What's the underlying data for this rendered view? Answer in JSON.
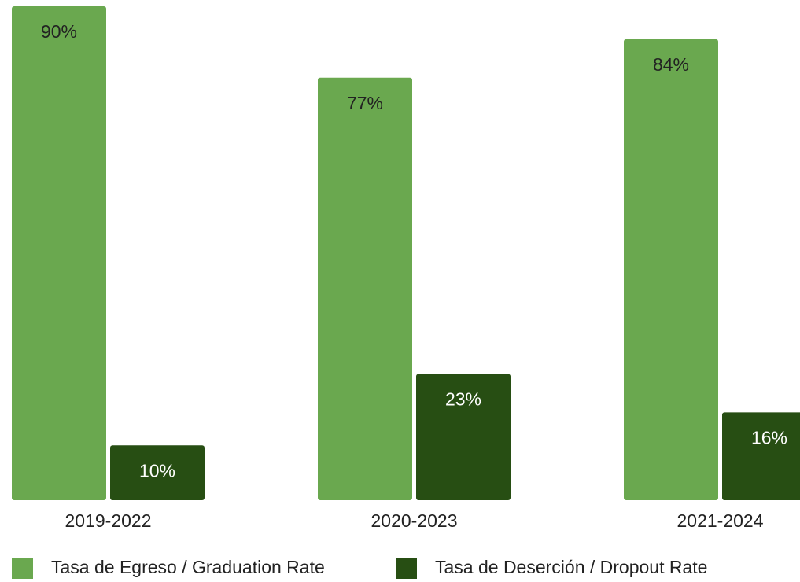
{
  "chart_data": {
    "type": "bar",
    "categories": [
      "2019-2022",
      "2020-2023",
      "2021-2024"
    ],
    "series": [
      {
        "name": "Tasa de Egreso / Graduation Rate",
        "color": "#6aa84f",
        "values": [
          90,
          77,
          84
        ],
        "value_labels": [
          "90%",
          "77%",
          "84%"
        ]
      },
      {
        "name": "Tasa de Deserción / Dropout Rate",
        "color": "#274e13",
        "values": [
          10,
          23,
          16
        ],
        "value_labels": [
          "10%",
          "23%",
          "16%"
        ]
      }
    ]
  }
}
